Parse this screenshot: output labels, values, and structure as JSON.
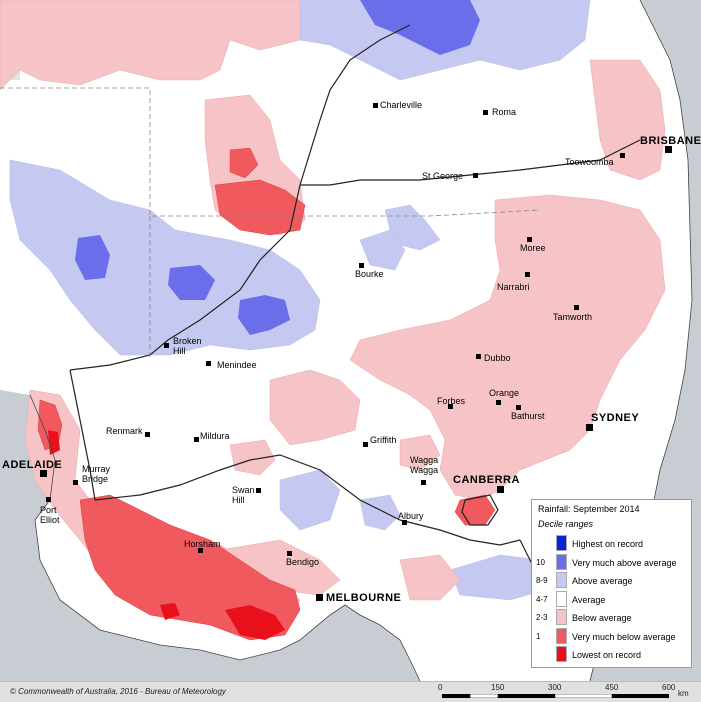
{
  "map": {
    "title": "Rainfall: September 2014",
    "subtitle": "Decile ranges",
    "colors": {
      "highest_on_record": "#0a22d8",
      "very_much_above": "#6b6eea",
      "above": "#c5c8f0",
      "average": "#ffffff",
      "below": "#f6c4c6",
      "very_much_below": "#f05a5e",
      "lowest_on_record": "#e8101a",
      "sea": "#c8ccd3",
      "outside": "#dcdcdc"
    }
  },
  "legend": [
    {
      "code": "",
      "label": "Highest on record",
      "color": "#0a22d8"
    },
    {
      "code": "10",
      "label": "Very much above average",
      "color": "#6b6eea"
    },
    {
      "code": "8-9",
      "label": "Above average",
      "color": "#c5c8f0"
    },
    {
      "code": "4-7",
      "label": "Average",
      "color": "#ffffff"
    },
    {
      "code": "2-3",
      "label": "Below average",
      "color": "#f6c4c6"
    },
    {
      "code": "1",
      "label": "Very much below average",
      "color": "#f05a5e"
    },
    {
      "code": "",
      "label": "Lowest on record",
      "color": "#e8101a"
    }
  ],
  "places": {
    "charleville": "Charleville",
    "roma": "Roma",
    "brisbane": "BRISBANE",
    "toowoomba": "Toowoomba",
    "st_george": "St George",
    "moree": "Moree",
    "bourke": "Bourke",
    "narrabri": "Narrabri",
    "tamworth": "Tamworth",
    "broken_hill": "Broken\nHill",
    "menindee": "Menindee",
    "dubbo": "Dubbo",
    "orange": "Orange",
    "forbes": "Forbes",
    "bathurst": "Bathurst",
    "sydney": "SYDNEY",
    "renmark": "Renmark",
    "mildura": "Mildura",
    "griffith": "Griffith",
    "wagga_wagga": "Wagga\nWagga",
    "canberra": "CANBERRA",
    "adelaide": "ADELAIDE",
    "murray_bridge": "Murray\nBridge",
    "swan_hill": "Swan\nHill",
    "port_elliot": "Port\nElliot",
    "albury": "Albury",
    "horsham": "Horsham",
    "bendigo": "Bendigo",
    "melbourne": "MELBOURNE"
  },
  "footer": {
    "copyright": "© Commonwealth of Australia, 2016 - Bureau of Meteorology",
    "scale_ticks": [
      "0",
      "150",
      "300",
      "450",
      "600"
    ],
    "scale_unit": "km"
  }
}
